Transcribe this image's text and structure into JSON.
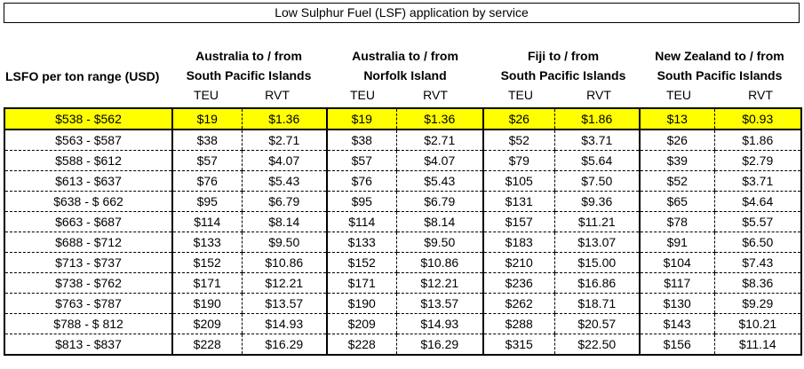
{
  "title": "Low Sulphur Fuel (LSF) application by service",
  "row_header": "LSFO per ton range (USD)",
  "groups": [
    {
      "line1": "Australia to / from",
      "line2": "South Pacific Islands",
      "teu": "TEU",
      "rvt": "RVT"
    },
    {
      "line1": "Australia to / from",
      "line2": "Norfolk Island",
      "teu": "TEU",
      "rvt": "RVT"
    },
    {
      "line1": "Fiji to / from",
      "line2": "South Pacific Islands",
      "teu": "TEU",
      "rvt": "RVT"
    },
    {
      "line1": "New Zealand to / from",
      "line2": "South Pacific Islands",
      "teu": "TEU",
      "rvt": "RVT"
    }
  ],
  "highlight_color": "#ffff00",
  "rows": [
    [
      "$538 - $562",
      "$19",
      "$1.36",
      "$19",
      "$1.36",
      "$26",
      "$1.86",
      "$13",
      "$0.93"
    ],
    [
      "$563 - $587",
      "$38",
      "$2.71",
      "$38",
      "$2.71",
      "$52",
      "$3.71",
      "$26",
      "$1.86"
    ],
    [
      "$588 - $612",
      "$57",
      "$4.07",
      "$57",
      "$4.07",
      "$79",
      "$5.64",
      "$39",
      "$2.79"
    ],
    [
      "$613 - $637",
      "$76",
      "$5.43",
      "$76",
      "$5.43",
      "$105",
      "$7.50",
      "$52",
      "$3.71"
    ],
    [
      "$638 - $ 662",
      "$95",
      "$6.79",
      "$95",
      "$6.79",
      "$131",
      "$9.36",
      "$65",
      "$4.64"
    ],
    [
      "$663 - $687",
      "$114",
      "$8.14",
      "$114",
      "$8.14",
      "$157",
      "$11.21",
      "$78",
      "$5.57"
    ],
    [
      "$688 - $712",
      "$133",
      "$9.50",
      "$133",
      "$9.50",
      "$183",
      "$13.07",
      "$91",
      "$6.50"
    ],
    [
      "$713 - $737",
      "$152",
      "$10.86",
      "$152",
      "$10.86",
      "$210",
      "$15.00",
      "$104",
      "$7.43"
    ],
    [
      "$738 - $762",
      "$171",
      "$12.21",
      "$171",
      "$12.21",
      "$236",
      "$16.86",
      "$117",
      "$8.36"
    ],
    [
      "$763 - $787",
      "$190",
      "$13.57",
      "$190",
      "$13.57",
      "$262",
      "$18.71",
      "$130",
      "$9.29"
    ],
    [
      "$788 - $ 812",
      "$209",
      "$14.93",
      "$209",
      "$14.93",
      "$288",
      "$20.57",
      "$143",
      "$10.21"
    ],
    [
      "$813 - $837",
      "$228",
      "$16.29",
      "$228",
      "$16.29",
      "$315",
      "$22.50",
      "$156",
      "$11.14"
    ]
  ]
}
